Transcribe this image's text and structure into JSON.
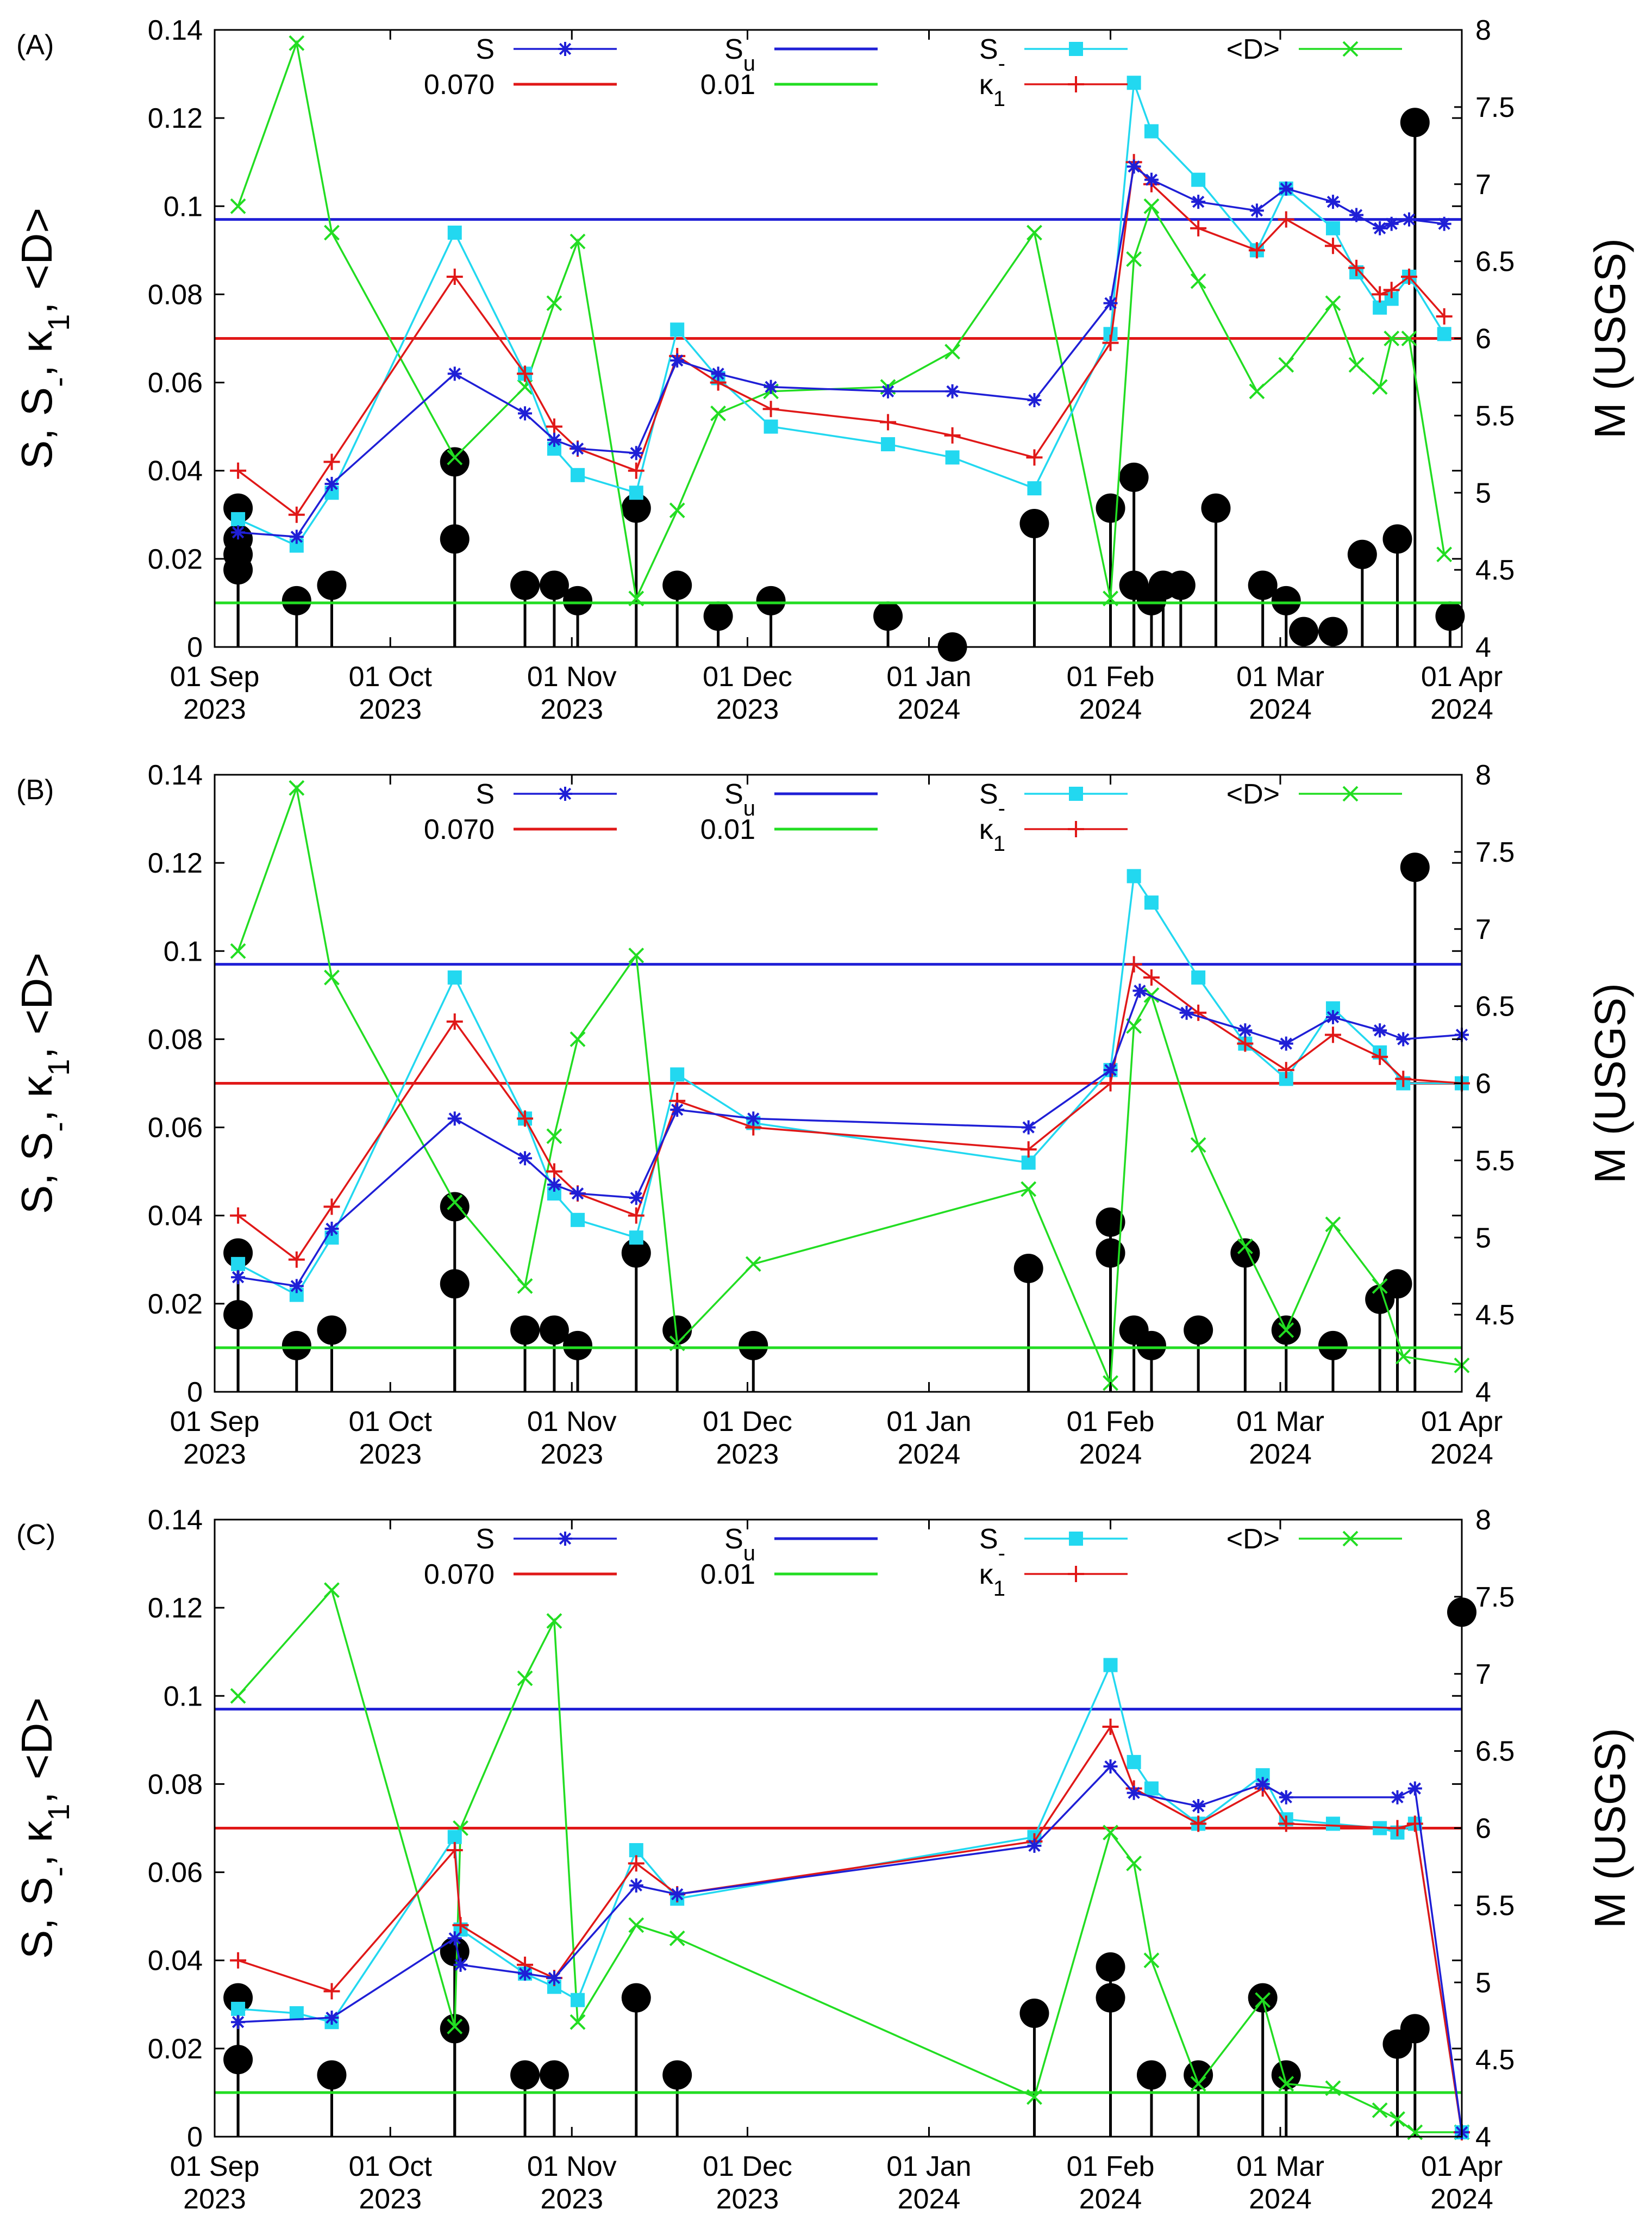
{
  "chart_data": [
    {
      "panel_label": "(A)",
      "type": "line",
      "ylabel": "S, S-, κ1, <D>",
      "y2label": "M (USGS)",
      "ylim": [
        0,
        0.14
      ],
      "y2lim": [
        4,
        8
      ],
      "yticks": [
        "0",
        "0.02",
        "0.04",
        "0.06",
        "0.08",
        "0.1",
        "0.12",
        "0.14"
      ],
      "y2ticks": [
        "4",
        "4.5",
        "5",
        "5.5",
        "6",
        "6.5",
        "7",
        "7.5",
        "8"
      ],
      "xticks": [
        {
          "top": "01 Sep",
          "bottom": "2023",
          "day": 0
        },
        {
          "top": "01 Oct",
          "bottom": "2023",
          "day": 30
        },
        {
          "top": "01 Nov",
          "bottom": "2023",
          "day": 61
        },
        {
          "top": "01 Dec",
          "bottom": "2023",
          "day": 91
        },
        {
          "top": "01 Jan",
          "bottom": "2024",
          "day": 122
        },
        {
          "top": "01 Feb",
          "bottom": "2024",
          "day": 153
        },
        {
          "top": "01 Mar",
          "bottom": "2024",
          "day": 182
        },
        {
          "top": "01 Apr",
          "bottom": "2024",
          "day": 213
        }
      ],
      "xlim": [
        0,
        213
      ],
      "legend": [
        {
          "label": "S",
          "sub": "",
          "key": "S"
        },
        {
          "label": "S",
          "sub": "u",
          "key": "Su"
        },
        {
          "label": "S",
          "sub": "-",
          "key": "Sminus"
        },
        {
          "label": "<D>",
          "sub": "",
          "key": "D"
        },
        {
          "label": "0.070",
          "sub": "",
          "key": "k070"
        },
        {
          "label": "0.01",
          "sub": "",
          "key": "d001"
        },
        {
          "label": "κ",
          "sub": "1",
          "key": "kappa"
        }
      ],
      "hlines": {
        "Su": 0.097,
        "k070": 0.07,
        "d001": 0.01
      },
      "series": {
        "S": {
          "x": [
            4,
            14,
            20,
            41,
            53,
            58,
            62,
            72,
            79,
            86,
            95,
            115,
            126,
            140,
            153,
            157,
            160,
            168,
            178,
            183,
            191,
            195,
            199,
            201,
            204,
            210
          ],
          "y": [
            0.026,
            0.025,
            0.037,
            0.062,
            0.053,
            0.047,
            0.045,
            0.044,
            0.065,
            0.062,
            0.059,
            0.058,
            0.058,
            0.056,
            0.078,
            0.109,
            0.106,
            0.101,
            0.099,
            0.104,
            0.101,
            0.098,
            0.095,
            0.096,
            0.097,
            0.096
          ]
        },
        "Sminus": {
          "x": [
            4,
            14,
            20,
            41,
            53,
            58,
            62,
            72,
            79,
            86,
            95,
            115,
            126,
            140,
            153,
            157,
            160,
            168,
            178,
            183,
            191,
            195,
            199,
            201,
            204,
            210
          ],
          "y": [
            0.029,
            0.023,
            0.035,
            0.094,
            0.062,
            0.045,
            0.039,
            0.035,
            0.072,
            0.061,
            0.05,
            0.046,
            0.043,
            0.036,
            0.071,
            0.128,
            0.117,
            0.106,
            0.09,
            0.104,
            0.095,
            0.085,
            0.077,
            0.079,
            0.084,
            0.071
          ]
        },
        "kappa": {
          "x": [
            4,
            14,
            20,
            41,
            53,
            58,
            62,
            72,
            79,
            86,
            95,
            115,
            126,
            140,
            153,
            157,
            160,
            168,
            178,
            183,
            191,
            195,
            199,
            201,
            204,
            210
          ],
          "y": [
            0.04,
            0.03,
            0.042,
            0.084,
            0.062,
            0.05,
            0.045,
            0.04,
            0.066,
            0.06,
            0.054,
            0.051,
            0.048,
            0.043,
            0.069,
            0.11,
            0.105,
            0.095,
            0.09,
            0.097,
            0.091,
            0.086,
            0.08,
            0.081,
            0.084,
            0.075
          ]
        },
        "D": {
          "x": [
            4,
            14,
            20,
            41,
            53,
            58,
            62,
            72,
            79,
            86,
            95,
            115,
            126,
            140,
            153,
            157,
            160,
            168,
            178,
            183,
            191,
            195,
            199,
            201,
            204,
            210
          ],
          "y": [
            0.1,
            0.137,
            0.094,
            0.043,
            0.059,
            0.078,
            0.092,
            0.011,
            0.031,
            0.053,
            0.058,
            0.059,
            0.067,
            0.094,
            0.011,
            0.088,
            0.1,
            0.083,
            0.058,
            0.064,
            0.078,
            0.064,
            0.059,
            0.07,
            0.07,
            0.021
          ]
        }
      },
      "quakes": {
        "day": [
          4,
          4,
          4,
          4,
          14,
          20,
          41,
          41,
          53,
          58,
          62,
          72,
          79,
          86,
          95,
          115,
          126,
          140,
          153,
          157,
          157,
          160,
          162,
          165,
          171,
          179,
          183,
          186,
          191,
          196,
          202,
          205,
          211
        ],
        "M": [
          4.6,
          4.5,
          4.9,
          4.7,
          4.3,
          4.4,
          5.2,
          4.7,
          4.4,
          4.4,
          4.3,
          4.9,
          4.4,
          4.2,
          4.3,
          4.2,
          4.0,
          4.8,
          4.9,
          5.1,
          4.4,
          4.3,
          4.4,
          4.4,
          4.9,
          4.4,
          4.3,
          4.1,
          4.1,
          4.6,
          4.7,
          7.4,
          4.2
        ]
      }
    },
    {
      "panel_label": "(B)",
      "type": "line",
      "ylabel": "S, S-, κ1, <D>",
      "y2label": "M (USGS)",
      "ylim": [
        0,
        0.14
      ],
      "y2lim": [
        4,
        8
      ],
      "yticks": [
        "0",
        "0.02",
        "0.04",
        "0.06",
        "0.08",
        "0.1",
        "0.12",
        "0.14"
      ],
      "y2ticks": [
        "4",
        "4.5",
        "5",
        "5.5",
        "6",
        "6.5",
        "7",
        "7.5",
        "8"
      ],
      "xticks": [
        {
          "top": "01 Sep",
          "bottom": "2023",
          "day": 0
        },
        {
          "top": "01 Oct",
          "bottom": "2023",
          "day": 30
        },
        {
          "top": "01 Nov",
          "bottom": "2023",
          "day": 61
        },
        {
          "top": "01 Dec",
          "bottom": "2023",
          "day": 91
        },
        {
          "top": "01 Jan",
          "bottom": "2024",
          "day": 122
        },
        {
          "top": "01 Feb",
          "bottom": "2024",
          "day": 153
        },
        {
          "top": "01 Mar",
          "bottom": "2024",
          "day": 182
        },
        {
          "top": "01 Apr",
          "bottom": "2024",
          "day": 213
        }
      ],
      "xlim": [
        0,
        213
      ],
      "legend": [
        {
          "label": "S",
          "sub": "",
          "key": "S"
        },
        {
          "label": "S",
          "sub": "u",
          "key": "Su"
        },
        {
          "label": "S",
          "sub": "-",
          "key": "Sminus"
        },
        {
          "label": "<D>",
          "sub": "",
          "key": "D"
        },
        {
          "label": "0.070",
          "sub": "",
          "key": "k070"
        },
        {
          "label": "0.01",
          "sub": "",
          "key": "d001"
        },
        {
          "label": "κ",
          "sub": "1",
          "key": "kappa"
        }
      ],
      "hlines": {
        "Su": 0.097,
        "k070": 0.07,
        "d001": 0.01
      },
      "series": {
        "S": {
          "x": [
            4,
            14,
            20,
            41,
            53,
            58,
            62,
            72,
            79,
            92,
            139,
            153,
            158,
            166,
            176,
            183,
            191,
            199,
            203,
            213
          ],
          "y": [
            0.026,
            0.024,
            0.037,
            0.062,
            0.053,
            0.047,
            0.045,
            0.044,
            0.064,
            0.062,
            0.06,
            0.073,
            0.091,
            0.086,
            0.082,
            0.079,
            0.085,
            0.082,
            0.08,
            0.081
          ]
        },
        "Sminus": {
          "x": [
            4,
            14,
            20,
            41,
            53,
            58,
            62,
            72,
            79,
            92,
            139,
            153,
            157,
            160,
            168,
            176,
            183,
            191,
            199,
            203,
            213
          ],
          "y": [
            0.029,
            0.022,
            0.035,
            0.094,
            0.062,
            0.045,
            0.039,
            0.035,
            0.072,
            0.061,
            0.052,
            0.073,
            0.117,
            0.111,
            0.094,
            0.079,
            0.071,
            0.087,
            0.077,
            0.07,
            0.07
          ]
        },
        "kappa": {
          "x": [
            4,
            14,
            20,
            41,
            53,
            58,
            62,
            72,
            79,
            92,
            139,
            153,
            157,
            160,
            168,
            176,
            183,
            191,
            199,
            203,
            213
          ],
          "y": [
            0.04,
            0.03,
            0.042,
            0.084,
            0.062,
            0.05,
            0.045,
            0.04,
            0.066,
            0.06,
            0.055,
            0.07,
            0.097,
            0.094,
            0.086,
            0.079,
            0.073,
            0.081,
            0.076,
            0.071,
            0.07
          ]
        },
        "D": {
          "x": [
            4,
            14,
            20,
            41,
            53,
            58,
            62,
            72,
            79,
            92,
            139,
            153,
            157,
            160,
            168,
            176,
            183,
            191,
            199,
            203,
            213
          ],
          "y": [
            0.1,
            0.137,
            0.094,
            0.043,
            0.024,
            0.058,
            0.08,
            0.099,
            0.011,
            0.029,
            0.046,
            0.002,
            0.083,
            0.09,
            0.056,
            0.033,
            0.014,
            0.038,
            0.024,
            0.008,
            0.006
          ]
        }
      },
      "quakes": {
        "day": [
          4,
          4,
          14,
          20,
          41,
          41,
          53,
          58,
          62,
          72,
          79,
          92,
          139,
          153,
          153,
          157,
          160,
          168,
          176,
          183,
          191,
          199,
          202,
          205
        ],
        "M": [
          4.5,
          4.9,
          4.3,
          4.4,
          5.2,
          4.7,
          4.4,
          4.4,
          4.3,
          4.9,
          4.4,
          4.3,
          4.8,
          4.9,
          5.1,
          4.4,
          4.3,
          4.4,
          4.9,
          4.4,
          4.3,
          4.6,
          4.7,
          7.4
        ]
      }
    },
    {
      "panel_label": "(C)",
      "type": "line",
      "ylabel": "S, S-, κ1, <D>",
      "y2label": "M (USGS)",
      "ylim": [
        0,
        0.14
      ],
      "y2lim": [
        4,
        8
      ],
      "yticks": [
        "0",
        "0.02",
        "0.04",
        "0.06",
        "0.08",
        "0.1",
        "0.12",
        "0.14"
      ],
      "y2ticks": [
        "4",
        "4.5",
        "5",
        "5.5",
        "6",
        "6.5",
        "7",
        "7.5",
        "8"
      ],
      "xticks": [
        {
          "top": "01 Sep",
          "bottom": "2023",
          "day": 0
        },
        {
          "top": "01 Oct",
          "bottom": "2023",
          "day": 30
        },
        {
          "top": "01 Nov",
          "bottom": "2023",
          "day": 61
        },
        {
          "top": "01 Dec",
          "bottom": "2023",
          "day": 91
        },
        {
          "top": "01 Jan",
          "bottom": "2024",
          "day": 122
        },
        {
          "top": "01 Feb",
          "bottom": "2024",
          "day": 153
        },
        {
          "top": "01 Mar",
          "bottom": "2024",
          "day": 182
        },
        {
          "top": "01 Apr",
          "bottom": "2024",
          "day": 213
        }
      ],
      "xlim": [
        0,
        213
      ],
      "legend": [
        {
          "label": "S",
          "sub": "",
          "key": "S"
        },
        {
          "label": "S",
          "sub": "u",
          "key": "Su"
        },
        {
          "label": "S",
          "sub": "-",
          "key": "Sminus"
        },
        {
          "label": "<D>",
          "sub": "",
          "key": "D"
        },
        {
          "label": "0.070",
          "sub": "",
          "key": "k070"
        },
        {
          "label": "0.01",
          "sub": "",
          "key": "d001"
        },
        {
          "label": "κ",
          "sub": "1",
          "key": "kappa"
        }
      ],
      "hlines": {
        "Su": 0.097,
        "k070": 0.07,
        "d001": 0.01
      },
      "series": {
        "S": {
          "x": [
            4,
            20,
            41,
            42,
            53,
            58,
            72,
            79,
            140,
            153,
            157,
            168,
            179,
            183,
            202,
            205,
            213
          ],
          "y": [
            0.026,
            0.027,
            0.045,
            0.039,
            0.037,
            0.036,
            0.057,
            0.055,
            0.066,
            0.084,
            0.078,
            0.075,
            0.08,
            0.077,
            0.077,
            0.079,
            0.001
          ]
        },
        "Sminus": {
          "x": [
            4,
            14,
            20,
            41,
            42,
            53,
            58,
            62,
            72,
            79,
            140,
            153,
            157,
            160,
            168,
            179,
            183,
            191,
            199,
            202,
            205,
            213
          ],
          "y": [
            0.029,
            0.028,
            0.026,
            0.068,
            0.047,
            0.037,
            0.034,
            0.031,
            0.065,
            0.054,
            0.068,
            0.107,
            0.085,
            0.079,
            0.071,
            0.082,
            0.072,
            0.071,
            0.07,
            0.069,
            0.071,
            0.001
          ]
        },
        "kappa": {
          "x": [
            4,
            20,
            41,
            42,
            53,
            58,
            72,
            79,
            140,
            153,
            157,
            168,
            179,
            183,
            202,
            205,
            213
          ],
          "y": [
            0.04,
            0.033,
            0.065,
            0.048,
            0.039,
            0.036,
            0.062,
            0.055,
            0.067,
            0.093,
            0.079,
            0.071,
            0.079,
            0.071,
            0.07,
            0.071,
            0.001
          ]
        },
        "D": {
          "x": [
            4,
            20,
            41,
            42,
            53,
            58,
            62,
            72,
            79,
            140,
            153,
            157,
            160,
            168,
            179,
            183,
            191,
            199,
            202,
            205,
            213
          ],
          "y": [
            0.1,
            0.124,
            0.025,
            0.07,
            0.104,
            0.117,
            0.026,
            0.048,
            0.045,
            0.009,
            0.069,
            0.062,
            0.04,
            0.012,
            0.031,
            0.012,
            0.011,
            0.006,
            0.004,
            0.001,
            0.001
          ]
        }
      },
      "quakes": {
        "day": [
          4,
          4,
          20,
          41,
          41,
          53,
          58,
          72,
          79,
          140,
          153,
          153,
          160,
          168,
          179,
          183,
          202,
          205
        ],
        "M": [
          4.5,
          4.9,
          4.4,
          5.2,
          4.7,
          4.4,
          4.4,
          4.9,
          4.4,
          4.8,
          4.9,
          5.1,
          4.4,
          4.4,
          4.9,
          4.4,
          4.6,
          4.7
        ]
      },
      "quake_extra": {
        "day": 213,
        "M": 7.4
      }
    }
  ],
  "colors": {
    "S": "#1f1fd6",
    "Su": "#1f1fd6",
    "Sminus": "#22d8f0",
    "kappa": "#e01818",
    "D": "#22dd22",
    "k070": "#e01818",
    "d001": "#22dd22",
    "quake": "#000000"
  }
}
